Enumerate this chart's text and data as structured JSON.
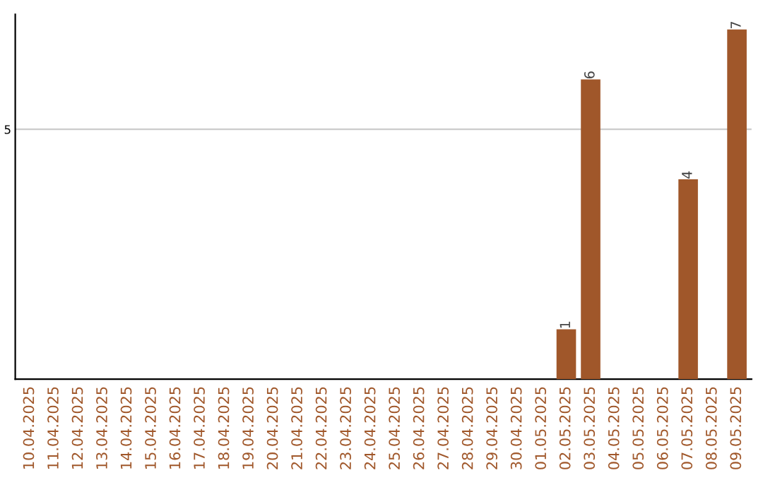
{
  "chart_data": {
    "type": "bar",
    "categories": [
      "10.04.2025",
      "11.04.2025",
      "12.04.2025",
      "13.04.2025",
      "14.04.2025",
      "15.04.2025",
      "16.04.2025",
      "17.04.2025",
      "18.04.2025",
      "19.04.2025",
      "20.04.2025",
      "21.04.2025",
      "22.04.2025",
      "23.04.2025",
      "24.04.2025",
      "25.04.2025",
      "26.04.2025",
      "27.04.2025",
      "28.04.2025",
      "29.04.2025",
      "30.04.2025",
      "01.05.2025",
      "02.05.2025",
      "03.05.2025",
      "04.05.2025",
      "05.05.2025",
      "06.05.2025",
      "07.05.2025",
      "08.05.2025",
      "09.05.2025"
    ],
    "values": [
      null,
      null,
      null,
      null,
      null,
      null,
      null,
      null,
      null,
      null,
      null,
      null,
      null,
      null,
      null,
      null,
      null,
      null,
      null,
      null,
      null,
      null,
      1,
      6,
      null,
      null,
      null,
      4,
      null,
      7
    ],
    "data_labels": true,
    "color": "#a0572a",
    "ylim": [
      0,
      7.3
    ],
    "yticks": [
      5
    ],
    "grid": "y"
  }
}
